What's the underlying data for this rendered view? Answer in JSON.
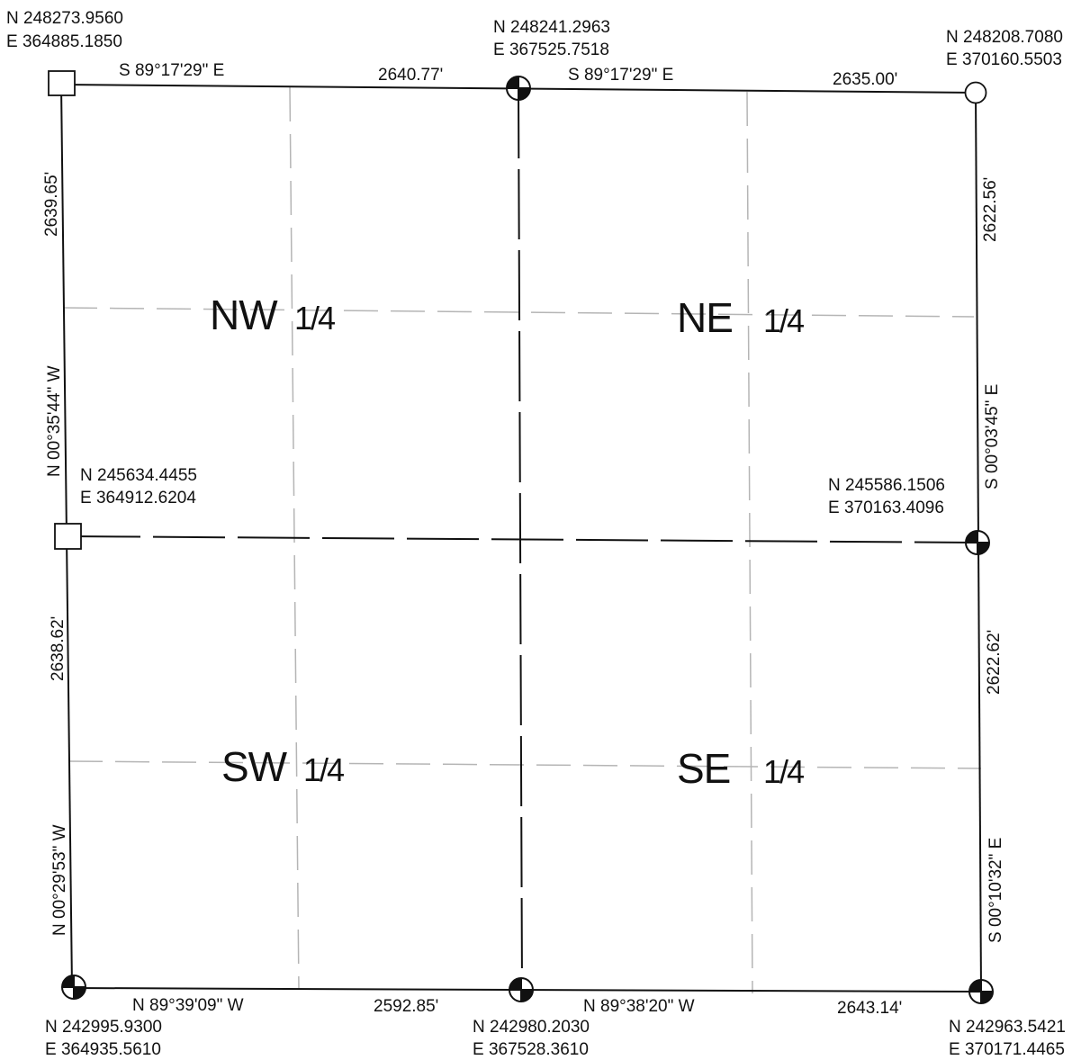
{
  "corners": {
    "nw": {
      "n": "N 248273.9560",
      "e": "E 364885.1850",
      "symbol": "square"
    },
    "n_quarter": {
      "n": "N 248241.2963",
      "e": "E 367525.7518",
      "symbol": "quartered-circle"
    },
    "ne": {
      "n": "N 248208.7080",
      "e": "E 370160.5503",
      "symbol": "open-circle"
    },
    "w_quarter": {
      "n": "N 245634.4455",
      "e": "E 364912.6204",
      "symbol": "square"
    },
    "e_quarter": {
      "n": "N 245586.1506",
      "e": "E 370163.4096",
      "symbol": "quartered-circle"
    },
    "sw": {
      "n": "N 242995.9300",
      "e": "E 364935.5610",
      "symbol": "quartered-circle"
    },
    "s_quarter": {
      "n": "N 242980.2030",
      "e": "E 367528.3610",
      "symbol": "quartered-circle"
    },
    "se": {
      "n": "N 242963.5421",
      "e": "E 370171.4465",
      "symbol": "quartered-circle"
    }
  },
  "lines": {
    "north_west": {
      "bearing": "S 89°17'29\" E",
      "distance": "2640.77'"
    },
    "north_east": {
      "bearing": "S 89°17'29\" E",
      "distance": "2635.00'"
    },
    "south_west": {
      "bearing": "N 89°39'09\" W",
      "distance": "2592.85'"
    },
    "south_east": {
      "bearing": "N 89°38'20\" W",
      "distance": "2643.14'"
    },
    "west_north": {
      "bearing": "N 00°35'44\" W",
      "distance": "2639.65'"
    },
    "west_south": {
      "bearing": "N 00°29'53\" W",
      "distance": "2638.62'"
    },
    "east_north": {
      "bearing": "S 00°03'45\" E",
      "distance": "2622.56'"
    },
    "east_south": {
      "bearing": "S 00°10'32\" E",
      "distance": "2622.62'"
    }
  },
  "quarters": {
    "nw": {
      "name": "NW",
      "fraction": "1/4"
    },
    "ne": {
      "name": "NE",
      "fraction": "1/4"
    },
    "sw": {
      "name": "SW",
      "fraction": "1/4"
    },
    "se": {
      "name": "SE",
      "fraction": "1/4"
    }
  },
  "colors": {
    "ink": "#111111",
    "light": "#b5b5b5",
    "paper": "#ffffff"
  }
}
